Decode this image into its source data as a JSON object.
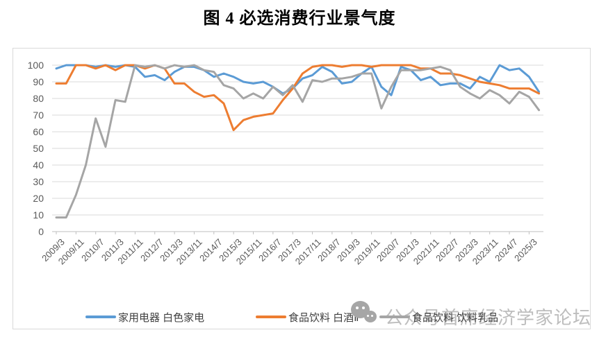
{
  "page": {
    "title": "图 4 必选消费行业景气度"
  },
  "watermark": {
    "icon": "wechat-icon",
    "text": "公众号首席经济学家论坛"
  },
  "colors": {
    "grid": "#D9D9D9",
    "axis": "#BFBFBF",
    "tick_label": "#595959",
    "frame_border": "#D9D9D9",
    "watermark": "#BDBDBD",
    "series_blue": "#5B9BD5",
    "series_orange": "#ED7D31",
    "series_gray": "#A5A5A5"
  },
  "chart_data": {
    "type": "line",
    "title": "图 4 必选消费行业景气度",
    "grid": true,
    "legend_position": "bottom",
    "ylim": [
      0,
      100
    ],
    "y_ticks": [
      0,
      10,
      20,
      30,
      40,
      50,
      60,
      70,
      80,
      90,
      100
    ],
    "x": [
      "2009/3",
      "2009/7",
      "2009/11",
      "2010/3",
      "2010/7",
      "2010/11",
      "2011/3",
      "2011/7",
      "2011/11",
      "2012/3",
      "2012/7",
      "2012/11",
      "2013/3",
      "2013/7",
      "2013/11",
      "2014/3",
      "2014/7",
      "2014/11",
      "2015/3",
      "2015/7",
      "2015/11",
      "2016/3",
      "2016/7",
      "2016/11",
      "2017/3",
      "2017/7",
      "2017/11",
      "2018/3",
      "2018/7",
      "2018/11",
      "2019/3",
      "2019/7",
      "2019/11",
      "2020/3",
      "2020/7",
      "2020/11",
      "2021/3",
      "2021/7",
      "2021/11",
      "2022/3",
      "2022/7",
      "2022/11",
      "2023/3",
      "2023/7",
      "2023/11",
      "2024/3",
      "2024/7",
      "2024/11",
      "2025/3",
      "2025/7"
    ],
    "x_tick_labels": [
      "2009/3",
      "2009/11",
      "2010/7",
      "2011/3",
      "2011/11",
      "2012/7",
      "2013/3",
      "2013/11",
      "2014/7",
      "2015/3",
      "2015/11",
      "2016/7",
      "2017/3",
      "2017/11",
      "2018/7",
      "2019/3",
      "2019/11",
      "2020/7",
      "2021/3",
      "2021/11",
      "2022/7",
      "2023/3",
      "2023/11",
      "2024/7",
      "2025/3"
    ],
    "series": [
      {
        "name": "家用电器 白色家电",
        "color": "#5B9BD5",
        "values": [
          98,
          100,
          100,
          100,
          99,
          100,
          99,
          100,
          99,
          93,
          94,
          91,
          96,
          99,
          99,
          97,
          93,
          95,
          93,
          90,
          89,
          90,
          87,
          83,
          86,
          92,
          94,
          99,
          96,
          89,
          90,
          95,
          99,
          87,
          82,
          99,
          97,
          91,
          93,
          88,
          89,
          89,
          86,
          93,
          90,
          100,
          97,
          98,
          93,
          84
        ]
      },
      {
        "name": "食品饮料 白酒Ⅱ",
        "color": "#ED7D31",
        "values": [
          89,
          89,
          100,
          100,
          98,
          100,
          97,
          100,
          100,
          98,
          100,
          98,
          89,
          89,
          84,
          81,
          82,
          77,
          61,
          67,
          69,
          70,
          71,
          79,
          86,
          95,
          99,
          100,
          100,
          99,
          100,
          100,
          99,
          100,
          100,
          100,
          100,
          98,
          98,
          95,
          95,
          94,
          92,
          90,
          89,
          88,
          86,
          86,
          86,
          83
        ]
      },
      {
        "name": "食品饮料 饮料乳品",
        "color": "#A5A5A5",
        "values": [
          8.5,
          8.5,
          22,
          40,
          68,
          51,
          79,
          78,
          100,
          99,
          100,
          98,
          100,
          99,
          100,
          97,
          96,
          88,
          86,
          80,
          83,
          80,
          87,
          82,
          88,
          78,
          91,
          90,
          92,
          92,
          93,
          95,
          95,
          74,
          87,
          97,
          97,
          97,
          98,
          99,
          97,
          87,
          83,
          80,
          85,
          82,
          77,
          84,
          81,
          73
        ]
      }
    ]
  }
}
